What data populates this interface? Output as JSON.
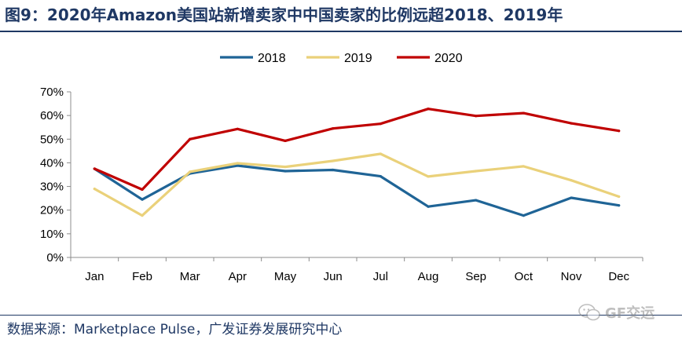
{
  "title": "图9：2020年Amazon美国站新增卖家中中国卖家的比例远超2018、2019年",
  "source": "数据来源：Marketplace Pulse，广发证券发展研究中心",
  "watermark": "GF交运",
  "colors": {
    "2018": "#1f6496",
    "2019": "#ead17a",
    "2020": "#c00000",
    "title": "#1f3864"
  },
  "chart_data": {
    "type": "line",
    "categories": [
      "Jan",
      "Feb",
      "Mar",
      "Apr",
      "May",
      "Jun",
      "Jul",
      "Aug",
      "Sep",
      "Oct",
      "Nov",
      "Dec"
    ],
    "series": [
      {
        "name": "2018",
        "values": [
          37.5,
          24.5,
          35.5,
          38.8,
          36.5,
          37.0,
          34.3,
          21.5,
          24.2,
          17.7,
          25.2,
          22.0
        ]
      },
      {
        "name": "2019",
        "values": [
          29.0,
          17.7,
          36.2,
          39.8,
          38.3,
          40.8,
          43.8,
          34.2,
          36.5,
          38.5,
          32.6,
          25.7
        ]
      },
      {
        "name": "2020",
        "values": [
          37.5,
          28.7,
          50.0,
          54.3,
          49.3,
          54.5,
          56.5,
          62.8,
          59.8,
          61.0,
          56.7,
          53.5
        ]
      }
    ],
    "ylim": [
      0,
      70
    ],
    "yticks": [
      "0%",
      "10%",
      "20%",
      "30%",
      "40%",
      "50%",
      "60%",
      "70%"
    ],
    "legend_position": "top",
    "grid": false
  }
}
